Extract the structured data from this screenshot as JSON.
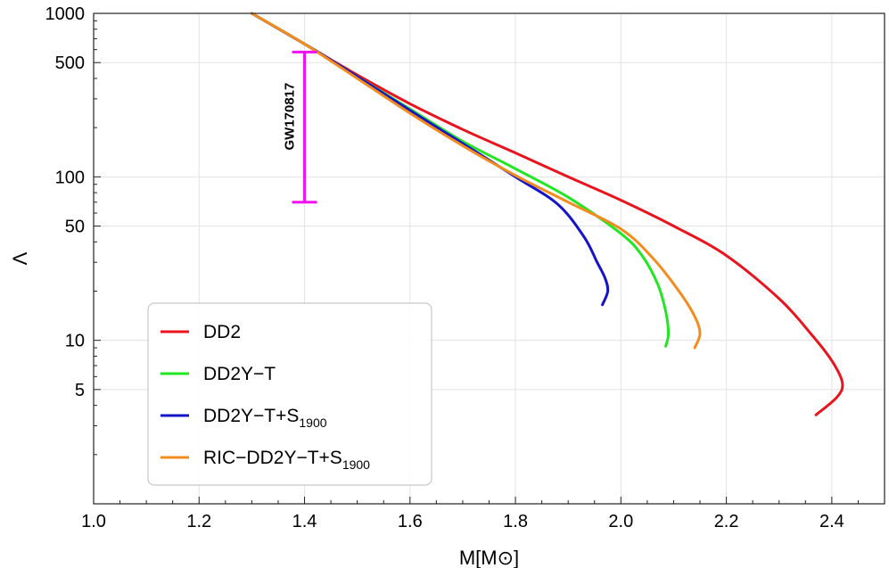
{
  "chart_data": {
    "type": "line",
    "title": "",
    "xlabel": "M[M⊙]",
    "ylabel": "Λ",
    "xlim": [
      1.0,
      2.5
    ],
    "ylim": [
      1.0,
      1000
    ],
    "yscale": "log",
    "grid": true,
    "x_ticks": [
      "1.0",
      "1.2",
      "1.4",
      "1.6",
      "1.8",
      "2.0",
      "2.2",
      "2.4"
    ],
    "x_tick_values": [
      1.0,
      1.2,
      1.4,
      1.6,
      1.8,
      2.0,
      2.2,
      2.4
    ],
    "y_ticks": [
      "5",
      "10",
      "50",
      "100",
      "500",
      "1000"
    ],
    "y_tick_values": [
      5,
      10,
      50,
      100,
      500,
      1000
    ],
    "legend_placement": "lower-left",
    "series": [
      {
        "name": "DD2",
        "legend_main": "DD2",
        "legend_sub": "",
        "color": "#e8141e",
        "points": [
          [
            1.3,
            1000
          ],
          [
            1.4,
            650
          ],
          [
            1.5,
            420
          ],
          [
            1.6,
            280
          ],
          [
            1.7,
            195
          ],
          [
            1.8,
            140
          ],
          [
            1.9,
            100
          ],
          [
            2.0,
            72
          ],
          [
            2.1,
            50
          ],
          [
            2.2,
            33
          ],
          [
            2.3,
            18
          ],
          [
            2.36,
            11
          ],
          [
            2.4,
            7.5
          ],
          [
            2.42,
            5.5
          ],
          [
            2.41,
            4.5
          ],
          [
            2.37,
            3.5
          ]
        ]
      },
      {
        "name": "DD2Y-T",
        "legend_main": "DD2Y−T",
        "legend_sub": "",
        "color": "#22e622",
        "points": [
          [
            1.3,
            1000
          ],
          [
            1.4,
            650
          ],
          [
            1.5,
            410
          ],
          [
            1.6,
            260
          ],
          [
            1.7,
            165
          ],
          [
            1.8,
            112
          ],
          [
            1.9,
            75
          ],
          [
            2.0,
            45
          ],
          [
            2.04,
            33
          ],
          [
            2.07,
            22
          ],
          [
            2.085,
            15
          ],
          [
            2.09,
            11
          ],
          [
            2.085,
            9.2
          ]
        ]
      },
      {
        "name": "DD2Y-T+S1900",
        "legend_main": "DD2Y−T+S",
        "legend_sub": "1900",
        "color": "#1414c8",
        "points": [
          [
            1.3,
            1000
          ],
          [
            1.4,
            650
          ],
          [
            1.5,
            410
          ],
          [
            1.6,
            255
          ],
          [
            1.7,
            160
          ],
          [
            1.8,
            100
          ],
          [
            1.88,
            68
          ],
          [
            1.93,
            43
          ],
          [
            1.955,
            30
          ],
          [
            1.97,
            24
          ],
          [
            1.975,
            20
          ],
          [
            1.965,
            16.5
          ]
        ]
      },
      {
        "name": "RIC-DD2Y-T+S1900",
        "legend_main": "RIC−DD2Y−T+S",
        "legend_sub": "1900",
        "color": "#f28c1e",
        "points": [
          [
            1.3,
            1000
          ],
          [
            1.4,
            650
          ],
          [
            1.5,
            400
          ],
          [
            1.6,
            245
          ],
          [
            1.7,
            155
          ],
          [
            1.8,
            102
          ],
          [
            1.9,
            70
          ],
          [
            2.0,
            48
          ],
          [
            2.06,
            32
          ],
          [
            2.11,
            20
          ],
          [
            2.14,
            14
          ],
          [
            2.15,
            11
          ],
          [
            2.14,
            9.0
          ]
        ]
      }
    ],
    "annotations": [
      {
        "text": "GW170817",
        "x": 1.4,
        "y_low": 70,
        "y_high": 580,
        "color": "#f010f0"
      }
    ]
  }
}
